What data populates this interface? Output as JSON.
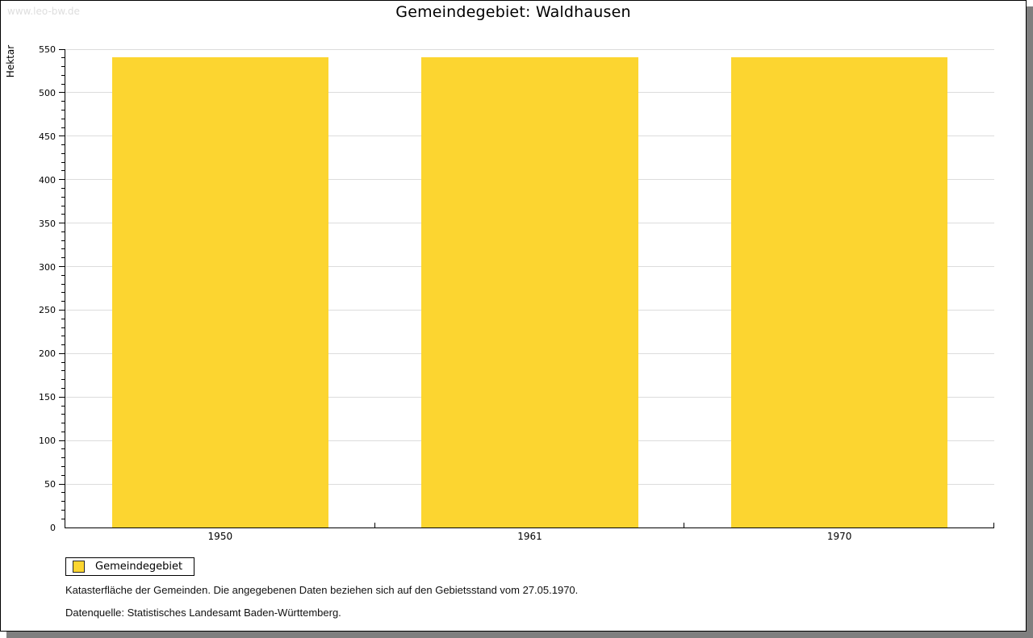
{
  "watermark": "www.leo-bw.de",
  "title": "Gemeindegebiet: Waldhausen",
  "legend": {
    "label": "Gemeindegebiet"
  },
  "footnotes": [
    "Katasterfläche der Gemeinden. Die angegebenen Daten beziehen sich auf den Gebietsstand vom 27.05.1970.",
    "Datenquelle: Statistisches Landesamt Baden-Württemberg."
  ],
  "colors": {
    "bar": "#FCD530",
    "gridline": "#dcdcdc",
    "frame_shadow": "#7f7f7f",
    "watermark": "#dedede"
  },
  "chart_data": {
    "type": "bar",
    "title": "Gemeindegebiet: Waldhausen",
    "categories": [
      "1950",
      "1961",
      "1970"
    ],
    "series": [
      {
        "name": "Gemeindegebiet",
        "color": "#FCD530",
        "values": [
          541,
          541,
          541
        ]
      }
    ],
    "xlabel": "",
    "ylabel": "Hektar",
    "ylim": [
      0,
      550
    ],
    "ytick_major": 50,
    "ytick_minor": 10,
    "grid": true,
    "legend_position": "bottom-left",
    "bar_width_fraction": 0.7
  }
}
